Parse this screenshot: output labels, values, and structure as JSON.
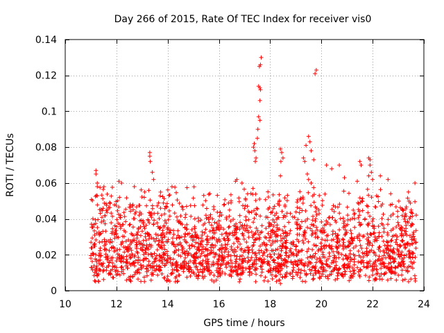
{
  "chart_data": {
    "type": "scatter",
    "title": "Day 266 of 2015, Rate Of TEC Index for receiver vis0",
    "xlabel": "GPS time / hours",
    "ylabel": "ROTI / TECUs",
    "xlim": [
      10,
      24
    ],
    "ylim": [
      0,
      0.14
    ],
    "xticks": [
      "10",
      "12",
      "14",
      "16",
      "18",
      "20",
      "22",
      "24"
    ],
    "yticks": [
      "0",
      "0.02",
      "0.04",
      "0.06",
      "0.08",
      "0.1",
      "0.12",
      "0.14"
    ],
    "xtick_values": [
      10,
      12,
      14,
      16,
      18,
      20,
      22,
      24
    ],
    "ytick_values": [
      0,
      0.02,
      0.04,
      0.06,
      0.08,
      0.1,
      0.12,
      0.14
    ],
    "grid": true,
    "marker": "+",
    "color": "#ff0000",
    "series": [
      {
        "name": "ROTI",
        "points_note": "dense cloud of ~2000 points between 11.0 and 23.7 h, mostly 0.005-0.05 TECU; generated procedurally plus notable outliers",
        "cloud_x_range": [
          11.0,
          23.7
        ],
        "cloud_y_range": [
          0.004,
          0.05
        ],
        "outliers": [
          [
            11.2,
            0.067
          ],
          [
            11.2,
            0.065
          ],
          [
            11.25,
            0.06
          ],
          [
            11.25,
            0.058
          ],
          [
            13.3,
            0.077
          ],
          [
            13.3,
            0.075
          ],
          [
            13.32,
            0.072
          ],
          [
            13.4,
            0.066
          ],
          [
            13.45,
            0.062
          ],
          [
            12.1,
            0.061
          ],
          [
            12.2,
            0.06
          ],
          [
            12.7,
            0.058
          ],
          [
            16.7,
            0.062
          ],
          [
            16.65,
            0.061
          ],
          [
            16.9,
            0.06
          ],
          [
            17.35,
            0.08
          ],
          [
            17.38,
            0.082
          ],
          [
            17.4,
            0.078
          ],
          [
            17.45,
            0.074
          ],
          [
            17.42,
            0.072
          ],
          [
            17.5,
            0.085
          ],
          [
            17.52,
            0.09
          ],
          [
            17.55,
            0.097
          ],
          [
            17.6,
            0.095
          ],
          [
            17.6,
            0.106
          ],
          [
            17.55,
            0.114
          ],
          [
            17.6,
            0.113
          ],
          [
            17.62,
            0.112
          ],
          [
            17.58,
            0.125
          ],
          [
            17.62,
            0.126
          ],
          [
            17.65,
            0.13
          ],
          [
            18.4,
            0.079
          ],
          [
            18.45,
            0.077
          ],
          [
            18.5,
            0.074
          ],
          [
            18.42,
            0.072
          ],
          [
            18.4,
            0.064
          ],
          [
            19.3,
            0.074
          ],
          [
            19.35,
            0.072
          ],
          [
            19.4,
            0.081
          ],
          [
            19.5,
            0.086
          ],
          [
            19.55,
            0.083
          ],
          [
            19.6,
            0.078
          ],
          [
            19.7,
            0.073
          ],
          [
            19.45,
            0.065
          ],
          [
            19.5,
            0.062
          ],
          [
            19.6,
            0.06
          ],
          [
            19.75,
            0.121
          ],
          [
            19.8,
            0.123
          ],
          [
            20.2,
            0.07
          ],
          [
            20.4,
            0.068
          ],
          [
            20.7,
            0.07
          ],
          [
            20.9,
            0.063
          ],
          [
            21.5,
            0.072
          ],
          [
            21.55,
            0.07
          ],
          [
            21.4,
            0.061
          ],
          [
            21.85,
            0.074
          ],
          [
            21.9,
            0.073
          ],
          [
            21.9,
            0.07
          ],
          [
            21.95,
            0.066
          ],
          [
            21.85,
            0.064
          ],
          [
            22.0,
            0.062
          ],
          [
            22.3,
            0.064
          ],
          [
            22.6,
            0.062
          ],
          [
            23.65,
            0.06
          ],
          [
            23.4,
            0.055
          ],
          [
            18.35,
            0.006
          ],
          [
            18.4,
            0.004
          ],
          [
            15.8,
            0.005
          ],
          [
            16.8,
            0.005
          ],
          [
            14.3,
            0.005
          ]
        ]
      }
    ]
  }
}
